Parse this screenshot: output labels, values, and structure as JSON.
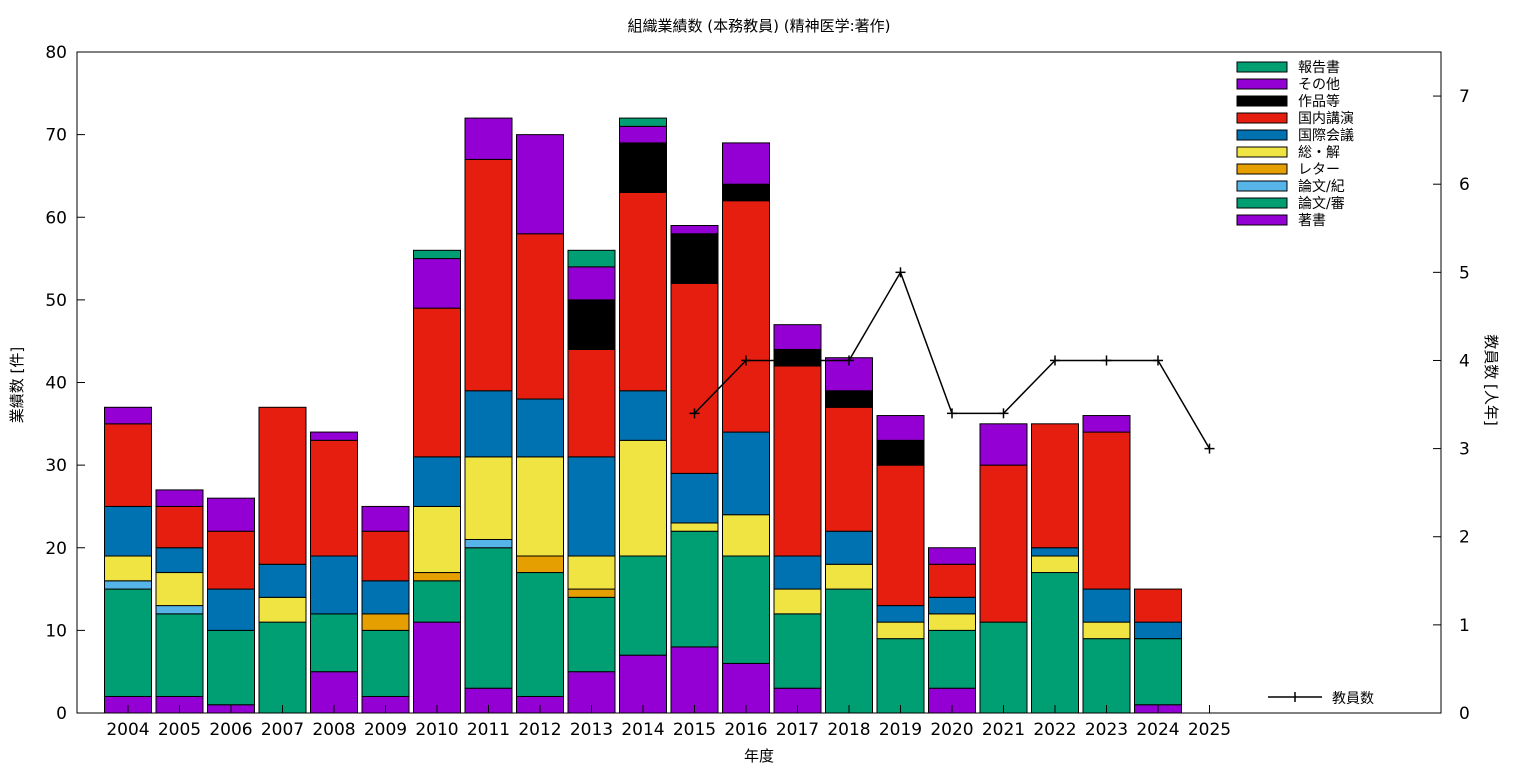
{
  "chart_data": {
    "type": "bar",
    "stacked": true,
    "title": "組織業績数 (本務教員) (精神医学:著作)",
    "xlabel": "年度",
    "ylabel": "業績数 [件]",
    "y2label": "教員数 [人年]",
    "ylim": [
      0,
      80
    ],
    "y2lim": [
      0,
      7.5
    ],
    "yticks": [
      0,
      10,
      20,
      30,
      40,
      50,
      60,
      70,
      80
    ],
    "y2ticks": [
      0,
      1,
      2,
      3,
      4,
      5,
      6,
      7
    ],
    "legend_position": "top-right",
    "categories": [
      "2004",
      "2005",
      "2006",
      "2007",
      "2008",
      "2009",
      "2010",
      "2011",
      "2012",
      "2013",
      "2014",
      "2015",
      "2016",
      "2017",
      "2018",
      "2019",
      "2020",
      "2021",
      "2022",
      "2023",
      "2024",
      "2025"
    ],
    "series": [
      {
        "name": "著書",
        "color": "#9400d3",
        "values": [
          2,
          2,
          1,
          0,
          5,
          2,
          11,
          3,
          2,
          5,
          7,
          8,
          6,
          3,
          0,
          0,
          3,
          0,
          0,
          0,
          1,
          0
        ]
      },
      {
        "name": "論文/審",
        "color": "#009e73",
        "values": [
          13,
          10,
          9,
          11,
          7,
          8,
          5,
          17,
          15,
          9,
          12,
          14,
          13,
          9,
          15,
          9,
          7,
          11,
          17,
          9,
          8,
          0
        ]
      },
      {
        "name": "論文/紀",
        "color": "#56b4e9",
        "values": [
          1,
          1,
          0,
          0,
          0,
          0,
          0,
          1,
          0,
          0,
          0,
          0,
          0,
          0,
          0,
          0,
          0,
          0,
          0,
          0,
          0,
          0
        ]
      },
      {
        "name": "レター",
        "color": "#e69f00",
        "values": [
          0,
          0,
          0,
          0,
          0,
          2,
          1,
          0,
          2,
          1,
          0,
          0,
          0,
          0,
          0,
          0,
          0,
          0,
          0,
          0,
          0,
          0
        ]
      },
      {
        "name": "総・解",
        "color": "#f0e442",
        "values": [
          3,
          4,
          0,
          3,
          0,
          0,
          8,
          10,
          12,
          4,
          14,
          1,
          5,
          3,
          3,
          2,
          2,
          0,
          2,
          2,
          0,
          0
        ]
      },
      {
        "name": "国際会議",
        "color": "#0072b2",
        "values": [
          6,
          3,
          5,
          4,
          7,
          4,
          6,
          8,
          7,
          12,
          6,
          6,
          10,
          4,
          4,
          2,
          2,
          0,
          1,
          4,
          2,
          0
        ]
      },
      {
        "name": "国内講演",
        "color": "#e51e10",
        "values": [
          10,
          5,
          7,
          19,
          14,
          6,
          18,
          28,
          20,
          13,
          24,
          23,
          28,
          23,
          15,
          17,
          4,
          19,
          15,
          19,
          4,
          0
        ]
      },
      {
        "name": "作品等",
        "color": "#000000",
        "values": [
          0,
          0,
          0,
          0,
          0,
          0,
          0,
          0,
          0,
          6,
          6,
          6,
          2,
          2,
          2,
          3,
          0,
          0,
          0,
          0,
          0,
          0
        ]
      },
      {
        "name": "その他",
        "color": "#9400d3",
        "values": [
          2,
          2,
          4,
          0,
          1,
          3,
          6,
          5,
          12,
          4,
          2,
          1,
          5,
          3,
          4,
          3,
          2,
          5,
          0,
          2,
          0,
          0
        ]
      },
      {
        "name": "報告書",
        "color": "#009e73",
        "values": [
          0,
          0,
          0,
          0,
          0,
          0,
          1,
          0,
          0,
          2,
          1,
          0,
          0,
          0,
          0,
          0,
          0,
          0,
          0,
          0,
          0,
          0
        ]
      }
    ],
    "line_series": {
      "name": "教員数",
      "axis": "y2",
      "color": "#000000",
      "categories": [
        "2015",
        "2016",
        "2017",
        "2018",
        "2019",
        "2020",
        "2021",
        "2022",
        "2023",
        "2024",
        "2025"
      ],
      "values": [
        3.4,
        4,
        4,
        4,
        5,
        3.4,
        3.4,
        4,
        4,
        4,
        3
      ]
    }
  }
}
